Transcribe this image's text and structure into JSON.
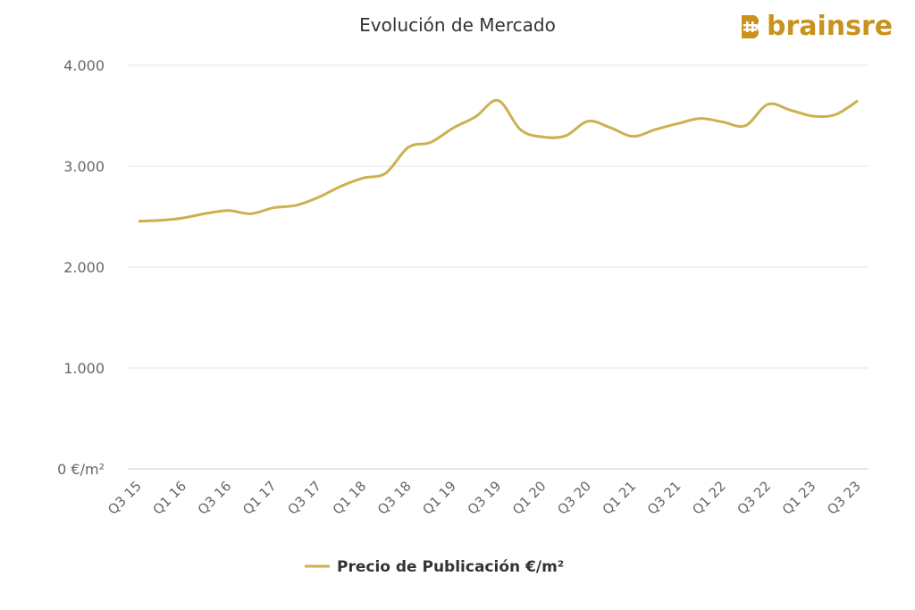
{
  "brand": {
    "logo_text": "brainsre",
    "color": "#c8921c"
  },
  "chart_data": {
    "type": "line",
    "title": "Evolución de Mercado",
    "xlabel": "",
    "ylabel": "",
    "ylim": [
      0,
      4000
    ],
    "yticks": [
      0,
      1000,
      2000,
      3000,
      4000
    ],
    "ytick_labels": [
      "0 €/m²",
      "1.000",
      "2.000",
      "3.000",
      "4.000"
    ],
    "grid": true,
    "legend_position": "bottom-center",
    "x": [
      "Q3 15",
      "Q4 15",
      "Q1 16",
      "Q2 16",
      "Q3 16",
      "Q4 16",
      "Q1 17",
      "Q2 17",
      "Q3 17",
      "Q4 17",
      "Q1 18",
      "Q2 18",
      "Q3 18",
      "Q4 18",
      "Q1 19",
      "Q2 19",
      "Q3 19",
      "Q4 19",
      "Q1 20",
      "Q2 20",
      "Q3 20",
      "Q4 20",
      "Q1 21",
      "Q2 21",
      "Q3 21",
      "Q4 21",
      "Q1 22",
      "Q2 22",
      "Q3 22",
      "Q4 22",
      "Q1 23",
      "Q2 23",
      "Q3 23"
    ],
    "xtick_labels": [
      "Q3 15",
      "Q1 16",
      "Q3 16",
      "Q1 17",
      "Q3 17",
      "Q1 18",
      "Q3 18",
      "Q1 19",
      "Q3 19",
      "Q1 20",
      "Q3 20",
      "Q1 21",
      "Q3 21",
      "Q1 22",
      "Q3 22",
      "Q1 23",
      "Q3 23"
    ],
    "series": [
      {
        "name": "Precio de Publicación €/m²",
        "color": "#cdb04f",
        "values": [
          2455,
          2463,
          2487,
          2531,
          2560,
          2528,
          2587,
          2611,
          2690,
          2800,
          2882,
          2930,
          3186,
          3236,
          3378,
          3490,
          3650,
          3360,
          3289,
          3300,
          3445,
          3380,
          3295,
          3363,
          3422,
          3472,
          3437,
          3401,
          3613,
          3555,
          3496,
          3510,
          3648
        ]
      }
    ]
  }
}
